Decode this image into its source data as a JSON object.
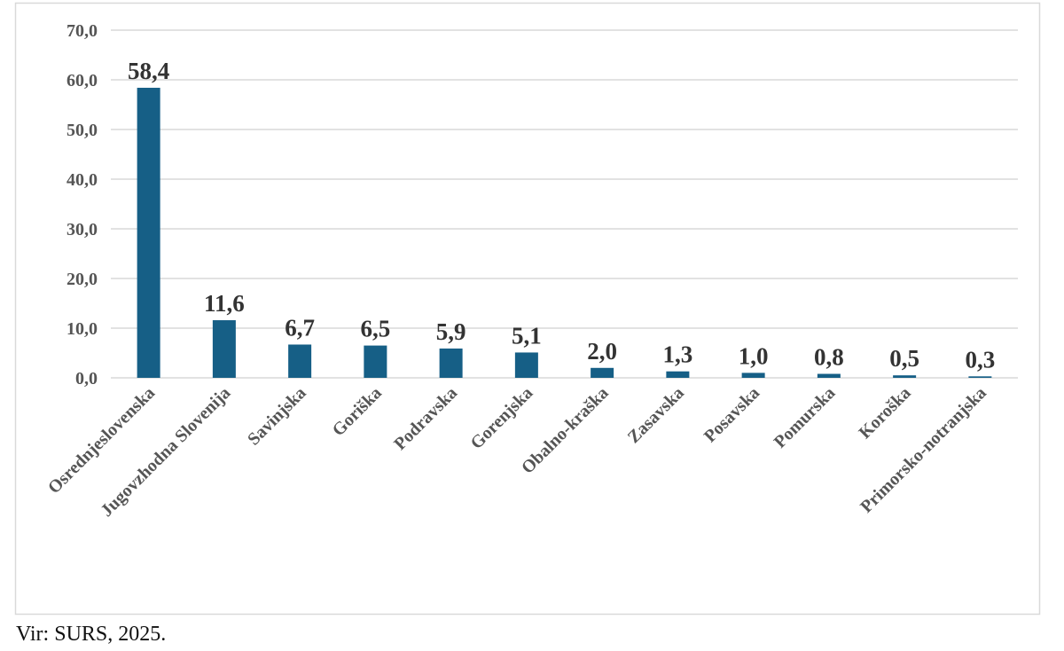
{
  "chart_data": {
    "type": "bar",
    "categories": [
      "Osrednjeslovenska",
      "Jugovzhodna Slovenija",
      "Savinjska",
      "Goriška",
      "Podravska",
      "Gorenjska",
      "Obalno-kraška",
      "Zasavska",
      "Posavska",
      "Pomurska",
      "Koroška",
      "Primorsko-notranjska"
    ],
    "values": [
      58.4,
      11.6,
      6.7,
      6.5,
      5.9,
      5.1,
      2.0,
      1.3,
      1.0,
      0.8,
      0.5,
      0.3
    ],
    "data_labels": [
      "58,4",
      "11,6",
      "6,7",
      "6,5",
      "5,9",
      "5,1",
      "2,0",
      "1,3",
      "1,0",
      "0,8",
      "0,5",
      "0,3"
    ],
    "yticks": [
      "0,0",
      "10,0",
      "20,0",
      "30,0",
      "40,0",
      "50,0",
      "60,0",
      "70,0"
    ],
    "ylim": [
      0,
      70
    ],
    "grid": true,
    "bar_color": "#165f86",
    "title": "",
    "xlabel": "",
    "ylabel": ""
  },
  "source": "Vir: SURS, 2025."
}
